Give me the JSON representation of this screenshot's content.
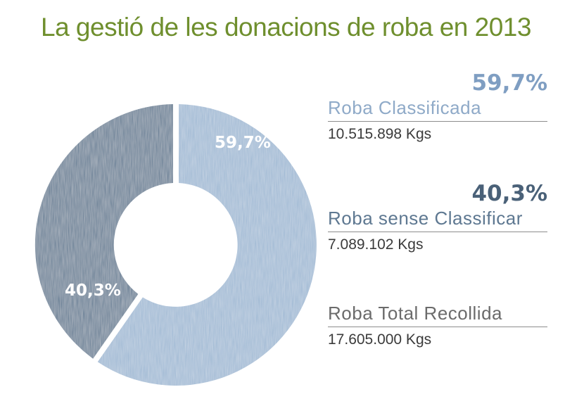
{
  "title": "La gestió de les donacions de roba en 2013",
  "chart_data": {
    "type": "pie",
    "donut": true,
    "title": "La gestió de les donacions de roba en 2013",
    "slices": [
      {
        "name": "Roba Classificada",
        "value": 59.7,
        "label": "59,7%",
        "color": "#9cb7d3"
      },
      {
        "name": "Roba sense Classificar",
        "value": 40.3,
        "label": "40,3%",
        "color": "#5e7891"
      }
    ]
  },
  "legend": {
    "classified": {
      "percent": "59,7%",
      "label": "Roba Classificada",
      "amount": "10.515.898 Kgs",
      "percent_color": "#7f9ec2",
      "label_color": "#8faac8"
    },
    "unclassified": {
      "percent": "40,3%",
      "label": "Roba sense Classificar",
      "amount": "7.089.102 Kgs",
      "percent_color": "#4a6178",
      "label_color": "#5e7891"
    },
    "total": {
      "label": "Roba Total Recollida",
      "amount": "17.605.000 Kgs",
      "label_color": "#6b6b6b"
    }
  }
}
